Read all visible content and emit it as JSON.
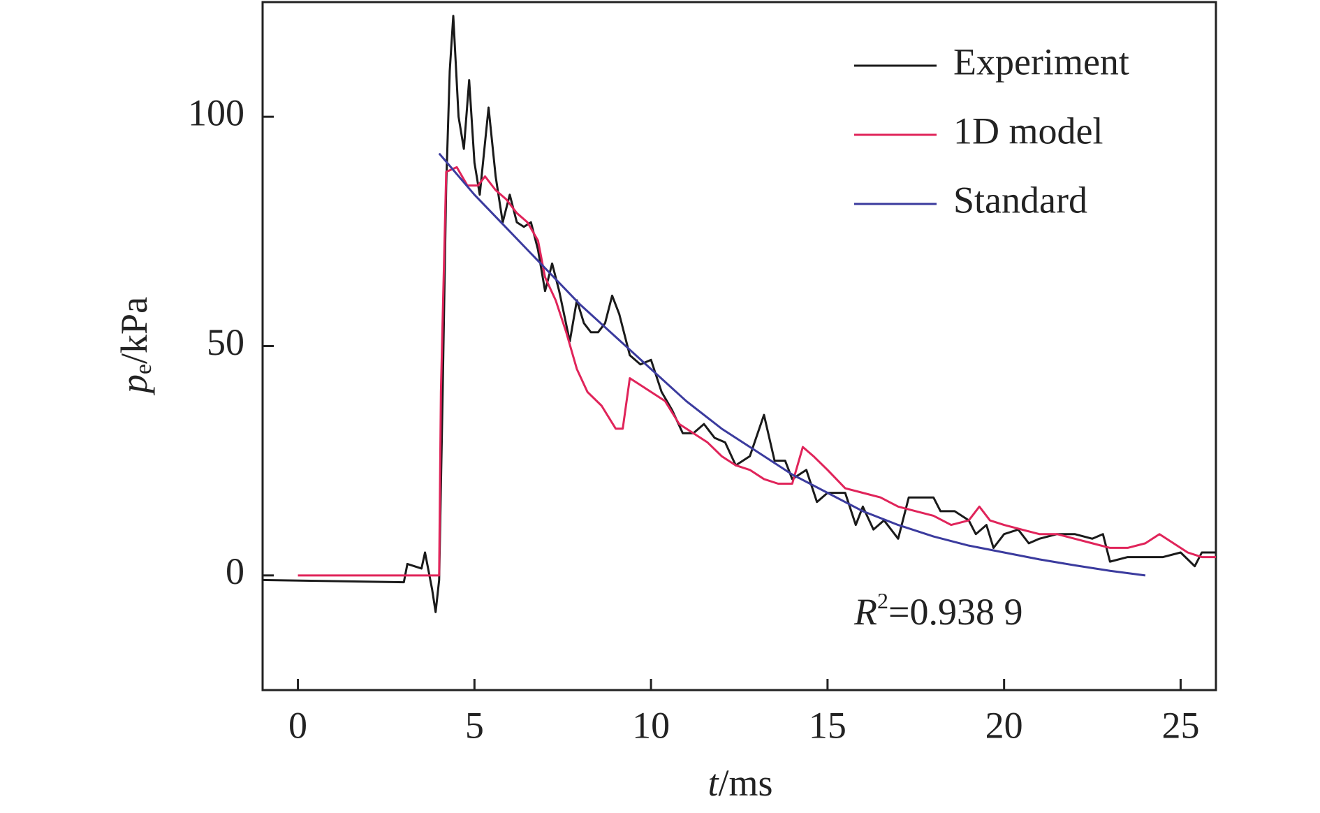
{
  "chart_data": {
    "type": "line",
    "xlabel": [
      "t",
      "/ms"
    ],
    "ylabel": [
      "p",
      "e",
      "/kPa"
    ],
    "annotation": [
      "R",
      "2",
      "=0.938 9"
    ],
    "xlim": [
      -1,
      26
    ],
    "xticks": [
      0,
      5,
      10,
      15,
      20,
      25
    ],
    "ylim": [
      -25,
      125
    ],
    "yticks": [
      0,
      50,
      100
    ],
    "legend": "upper right",
    "series": [
      {
        "name": "Experiment",
        "color": "#1a1a1a",
        "x": [
          -1,
          3,
          3.1,
          3.5,
          3.6,
          3.8,
          3.9,
          4.0,
          4.1,
          4.2,
          4.3,
          4.4,
          4.55,
          4.7,
          4.85,
          5.0,
          5.15,
          5.4,
          5.6,
          5.8,
          6.0,
          6.2,
          6.4,
          6.6,
          6.8,
          7.0,
          7.2,
          7.4,
          7.7,
          7.9,
          8.1,
          8.3,
          8.5,
          8.7,
          8.9,
          9.1,
          9.4,
          9.7,
          10.0,
          10.3,
          10.6,
          10.9,
          11.2,
          11.5,
          11.8,
          12.1,
          12.4,
          12.8,
          13.2,
          13.5,
          13.8,
          14.0,
          14.4,
          14.7,
          15.0,
          15.5,
          15.8,
          16.0,
          16.3,
          16.6,
          17.0,
          17.3,
          17.6,
          18.0,
          18.2,
          18.6,
          19.0,
          19.2,
          19.5,
          19.7,
          20.0,
          20.4,
          20.7,
          21.0,
          21.5,
          22.0,
          22.5,
          22.8,
          23.0,
          23.5,
          24.0,
          24.5,
          25.0,
          25.4,
          25.6,
          26
        ],
        "values": [
          -1,
          -1.5,
          2.5,
          1.5,
          5,
          -3,
          -8,
          -1,
          40,
          85,
          110,
          122,
          100,
          93,
          108,
          90,
          83,
          102,
          87,
          77,
          83,
          77,
          76,
          77,
          71,
          62,
          68,
          62,
          51,
          60,
          55,
          53,
          53,
          55,
          61,
          57,
          48,
          46,
          47,
          40,
          36,
          31,
          31,
          33,
          30,
          29,
          24,
          26,
          35,
          25,
          25,
          21,
          23,
          16,
          18,
          18,
          11,
          15,
          10,
          12,
          8,
          17,
          17,
          17,
          14,
          14,
          12,
          9,
          11,
          6,
          9,
          10,
          7,
          8,
          9,
          9,
          8,
          9,
          3,
          4,
          4,
          4,
          5,
          2,
          5,
          5
        ]
      },
      {
        "name": "1D model",
        "color": "#e0245a",
        "x": [
          0,
          4.0,
          4.05,
          4.2,
          4.5,
          4.8,
          5.1,
          5.3,
          5.6,
          5.9,
          6.2,
          6.5,
          6.8,
          7.0,
          7.3,
          7.6,
          7.9,
          8.2,
          8.6,
          9.0,
          9.2,
          9.4,
          9.6,
          10.0,
          10.4,
          10.8,
          11.2,
          11.6,
          12.0,
          12.4,
          12.8,
          13.2,
          13.6,
          14.0,
          14.3,
          14.6,
          15.0,
          15.5,
          16.0,
          16.5,
          17.0,
          17.5,
          18.0,
          18.5,
          19.0,
          19.3,
          19.6,
          20.0,
          20.5,
          21.0,
          21.5,
          22.0,
          22.5,
          23.0,
          23.5,
          24.0,
          24.4,
          24.8,
          25.2,
          25.6,
          26
        ],
        "values": [
          0,
          0,
          40,
          88,
          89,
          85,
          85,
          87,
          84,
          82,
          79,
          77,
          73,
          65,
          60,
          53,
          45,
          40,
          37,
          32,
          32,
          43,
          42,
          40,
          38,
          33,
          31,
          29,
          26,
          24,
          23,
          21,
          20,
          20,
          28,
          26,
          23,
          19,
          18,
          17,
          15,
          14,
          13,
          11,
          12,
          15,
          12,
          11,
          10,
          9,
          9,
          8,
          7,
          6,
          6,
          7,
          9,
          7,
          5,
          4,
          4
        ]
      },
      {
        "name": "Standard",
        "color": "#3b3b9e",
        "x": [
          4,
          5,
          6,
          7,
          8,
          9,
          10,
          11,
          12,
          13,
          14,
          15,
          16,
          17,
          18,
          19,
          20,
          21,
          22,
          23,
          24
        ],
        "values": [
          92,
          83,
          75,
          67,
          59,
          52,
          45,
          38,
          32,
          27,
          22,
          18,
          14,
          11,
          8.5,
          6.5,
          5,
          3.5,
          2.2,
          1,
          0
        ]
      }
    ]
  }
}
